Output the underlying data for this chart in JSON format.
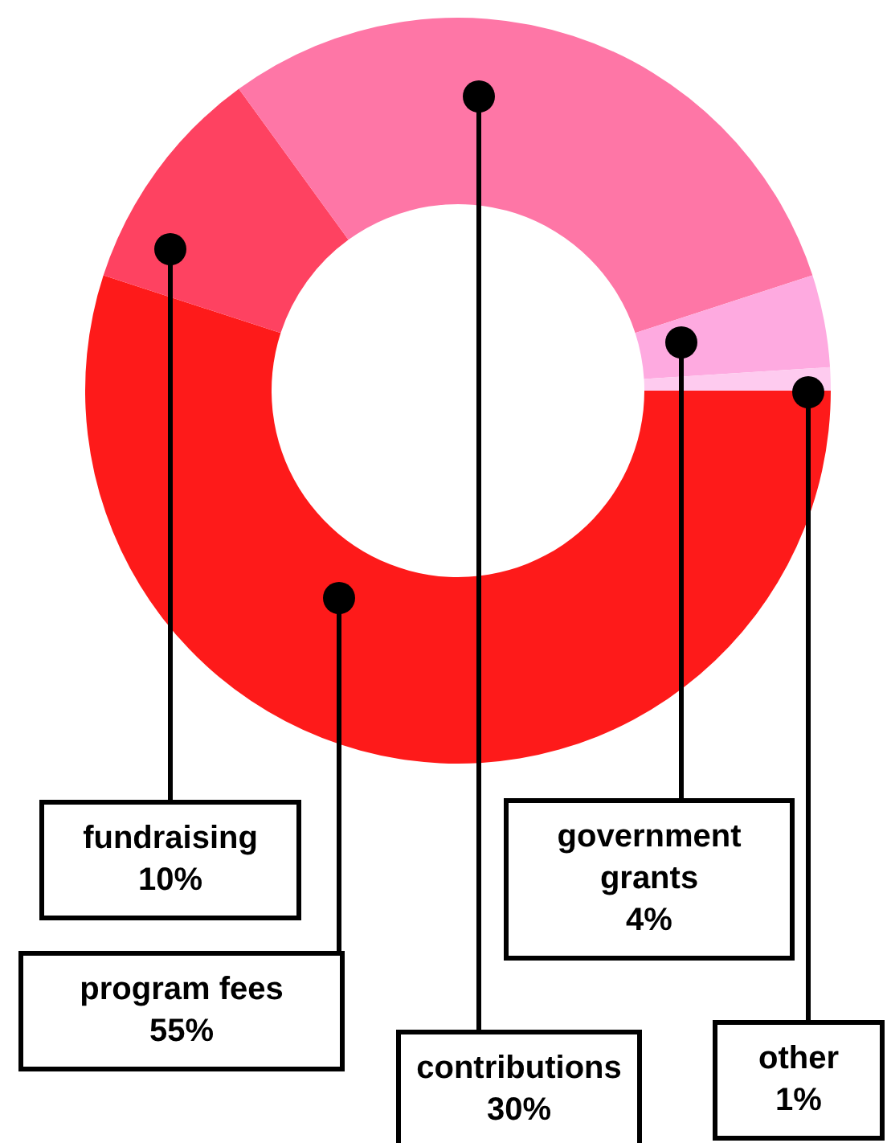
{
  "chart_data": {
    "type": "donut",
    "categories": [
      "program fees",
      "fundraising",
      "contributions",
      "government grants",
      "other"
    ],
    "values": [
      55,
      10,
      30,
      4,
      1
    ],
    "colors": [
      "#fe1a1a",
      "#fe4261",
      "#fe76a6",
      "#feaae0",
      "#fecbef"
    ],
    "value_labels": [
      "55%",
      "10%",
      "30%",
      "4%",
      "1%"
    ],
    "legend": false
  }
}
